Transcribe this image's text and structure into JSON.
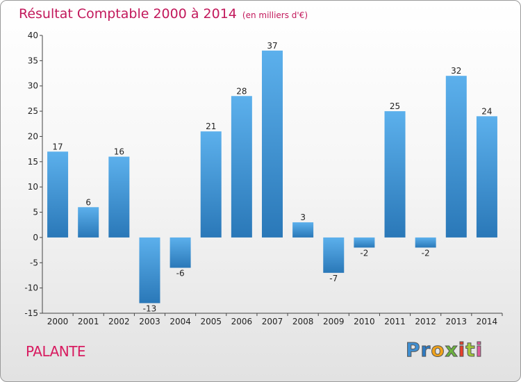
{
  "chart_data": {
    "type": "bar",
    "title": "Résultat Comptable 2000 à 2014",
    "unit": "(en milliers d'€)",
    "categories": [
      "2000",
      "2001",
      "2002",
      "2003",
      "2004",
      "2005",
      "2006",
      "2007",
      "2008",
      "2009",
      "2010",
      "2011",
      "2012",
      "2013",
      "2014"
    ],
    "values": [
      17,
      6,
      16,
      -13,
      -6,
      21,
      28,
      37,
      3,
      -7,
      -2,
      25,
      -2,
      32,
      24
    ],
    "ylim": [
      -15,
      40
    ],
    "yticks": [
      40,
      35,
      30,
      25,
      20,
      15,
      10,
      5,
      0,
      -5,
      -10,
      -15
    ],
    "xlabel": "",
    "ylabel": "",
    "grid": false,
    "bar_color": "#3b8fd4"
  },
  "location_name": "PALANTE",
  "logo": {
    "letters": [
      "P",
      "r",
      "o",
      "x",
      "i",
      "t",
      "i"
    ],
    "colors": [
      "#3f8fd2",
      "#2e7bc4",
      "#f0a21a",
      "#6cb33f",
      "#e8402a",
      "#a3c93a",
      "#e05b9e"
    ]
  }
}
